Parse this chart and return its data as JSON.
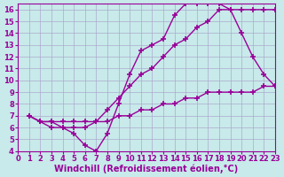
{
  "background_color": "#c8eaea",
  "grid_color": "#aaaacc",
  "line_color": "#990099",
  "marker": "+",
  "markersize": 4,
  "markeredgewidth": 1.2,
  "linewidth": 1.0,
  "xlim": [
    0,
    23
  ],
  "ylim": [
    4,
    16.5
  ],
  "xticks": [
    0,
    1,
    2,
    3,
    4,
    5,
    6,
    7,
    8,
    9,
    10,
    11,
    12,
    13,
    14,
    15,
    16,
    17,
    18,
    19,
    20,
    21,
    22,
    23
  ],
  "yticks": [
    4,
    5,
    6,
    7,
    8,
    9,
    10,
    11,
    12,
    13,
    14,
    15,
    16
  ],
  "xlabel": "Windchill (Refroidissement éolien,°C)",
  "xlabel_fontsize": 7,
  "tick_fontsize": 6,
  "series": [
    {
      "x": [
        1,
        2,
        3,
        4,
        5,
        6,
        7,
        8,
        9,
        10,
        11,
        12,
        13,
        14,
        15,
        16,
        17,
        18,
        19,
        20,
        21,
        22,
        23
      ],
      "y": [
        7.0,
        6.5,
        6.5,
        6.5,
        6.5,
        6.5,
        6.5,
        6.5,
        7.0,
        7.0,
        7.5,
        7.5,
        8.0,
        8.0,
        8.5,
        8.5,
        9.0,
        9.0,
        9.0,
        9.0,
        9.0,
        9.5,
        9.5
      ]
    },
    {
      "x": [
        1,
        2,
        3,
        4,
        5,
        6,
        7,
        8,
        9,
        10,
        11,
        12,
        13,
        14,
        15,
        16,
        17,
        18,
        19,
        20,
        21,
        22,
        23
      ],
      "y": [
        7.0,
        6.5,
        6.5,
        6.0,
        6.0,
        6.0,
        6.5,
        7.5,
        8.5,
        9.5,
        10.5,
        11.0,
        12.0,
        13.0,
        13.5,
        14.5,
        15.0,
        16.0,
        16.0,
        16.0,
        16.0,
        16.0,
        16.0
      ]
    },
    {
      "x": [
        1,
        2,
        3,
        4,
        5,
        6,
        7,
        8,
        9,
        10,
        11,
        12,
        13,
        14,
        15,
        16,
        17,
        18,
        19,
        20,
        21,
        22,
        23
      ],
      "y": [
        7.0,
        6.5,
        6.0,
        6.0,
        5.5,
        4.5,
        4.0,
        5.5,
        8.0,
        10.5,
        12.5,
        13.0,
        13.5,
        15.5,
        16.5,
        16.5,
        16.5,
        16.5,
        16.0,
        14.0,
        12.0,
        10.5,
        9.5
      ]
    }
  ]
}
